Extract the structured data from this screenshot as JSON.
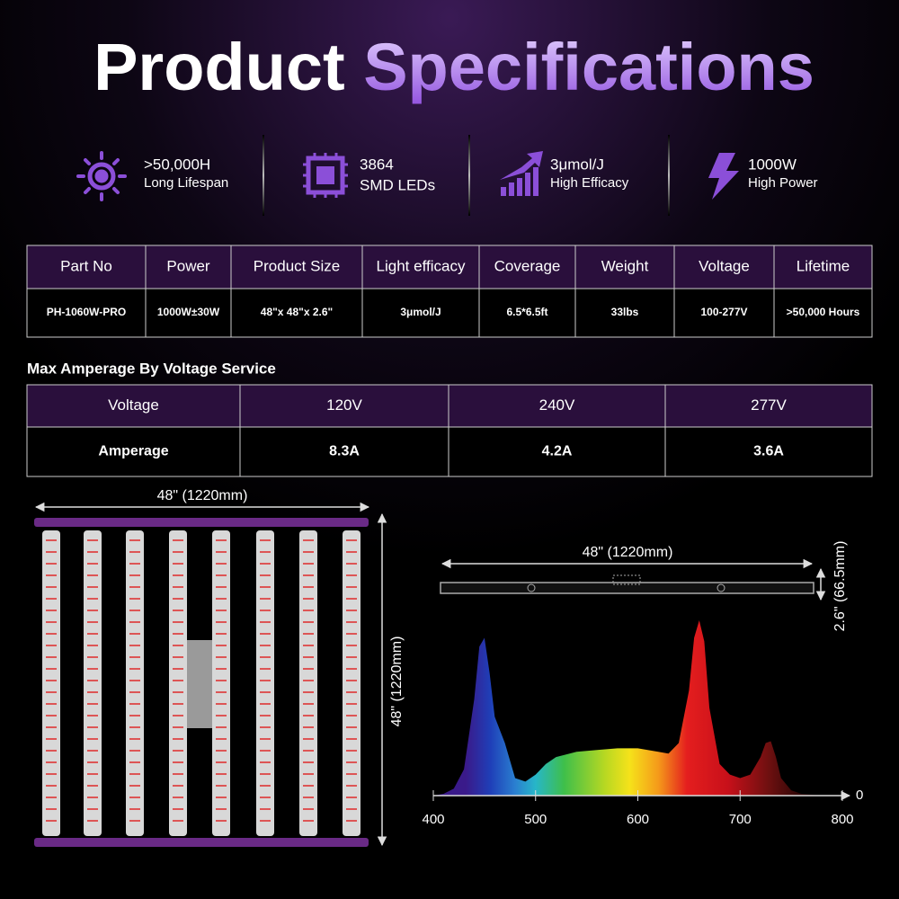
{
  "header": {
    "title_part1": "Product",
    "title_part2": "Specifications"
  },
  "features": [
    {
      "value": ">50,000H",
      "label": "Long Lifespan"
    },
    {
      "value": "3864",
      "label": "SMD LEDs"
    },
    {
      "value": "3μmol/J",
      "label": "High Efficacy"
    },
    {
      "value": "1000W",
      "label": "High Power"
    }
  ],
  "specs_table": {
    "headers": [
      "Part No",
      "Power",
      "Product Size",
      "Light efficacy",
      "Coverage",
      "Weight",
      "Voltage",
      "Lifetime"
    ],
    "row": [
      "PH-1060W-PRO",
      "1000W±30W",
      "48\"x 48\"x 2.6\"",
      "3μmol/J",
      "6.5*6.5ft",
      "33lbs",
      "100-277V",
      ">50,000 Hours"
    ]
  },
  "amperage": {
    "title": "Max Amperage By Voltage Service",
    "rows": [
      [
        "Voltage",
        "120V",
        "240V",
        "277V"
      ],
      [
        "Amperage",
        "8.3A",
        "4.2A",
        "3.6A"
      ]
    ]
  },
  "dimensions": {
    "fixture_width": "48\"  (1220mm)",
    "fixture_height": "48\"  (1220mm)",
    "profile_length": "48\"  (1220mm)",
    "profile_height": "2.6\"  (66.5mm)"
  },
  "spectrum": {
    "type": "area",
    "x": [
      400,
      410,
      420,
      430,
      440,
      445,
      450,
      455,
      460,
      470,
      480,
      490,
      500,
      510,
      520,
      540,
      560,
      580,
      600,
      620,
      630,
      640,
      650,
      655,
      660,
      665,
      670,
      680,
      690,
      700,
      710,
      720,
      725,
      730,
      735,
      740,
      750,
      760,
      780
    ],
    "values": [
      0,
      1,
      4,
      15,
      55,
      85,
      90,
      70,
      45,
      30,
      10,
      8,
      12,
      18,
      22,
      25,
      26,
      27,
      27,
      25,
      24,
      30,
      60,
      90,
      100,
      88,
      50,
      18,
      12,
      10,
      12,
      22,
      30,
      31,
      22,
      10,
      3,
      1,
      0
    ],
    "xlim": [
      400,
      800
    ],
    "xticks": [
      400,
      500,
      600,
      700,
      800
    ],
    "ylim": [
      0,
      100
    ],
    "yticks": [
      0
    ]
  }
}
